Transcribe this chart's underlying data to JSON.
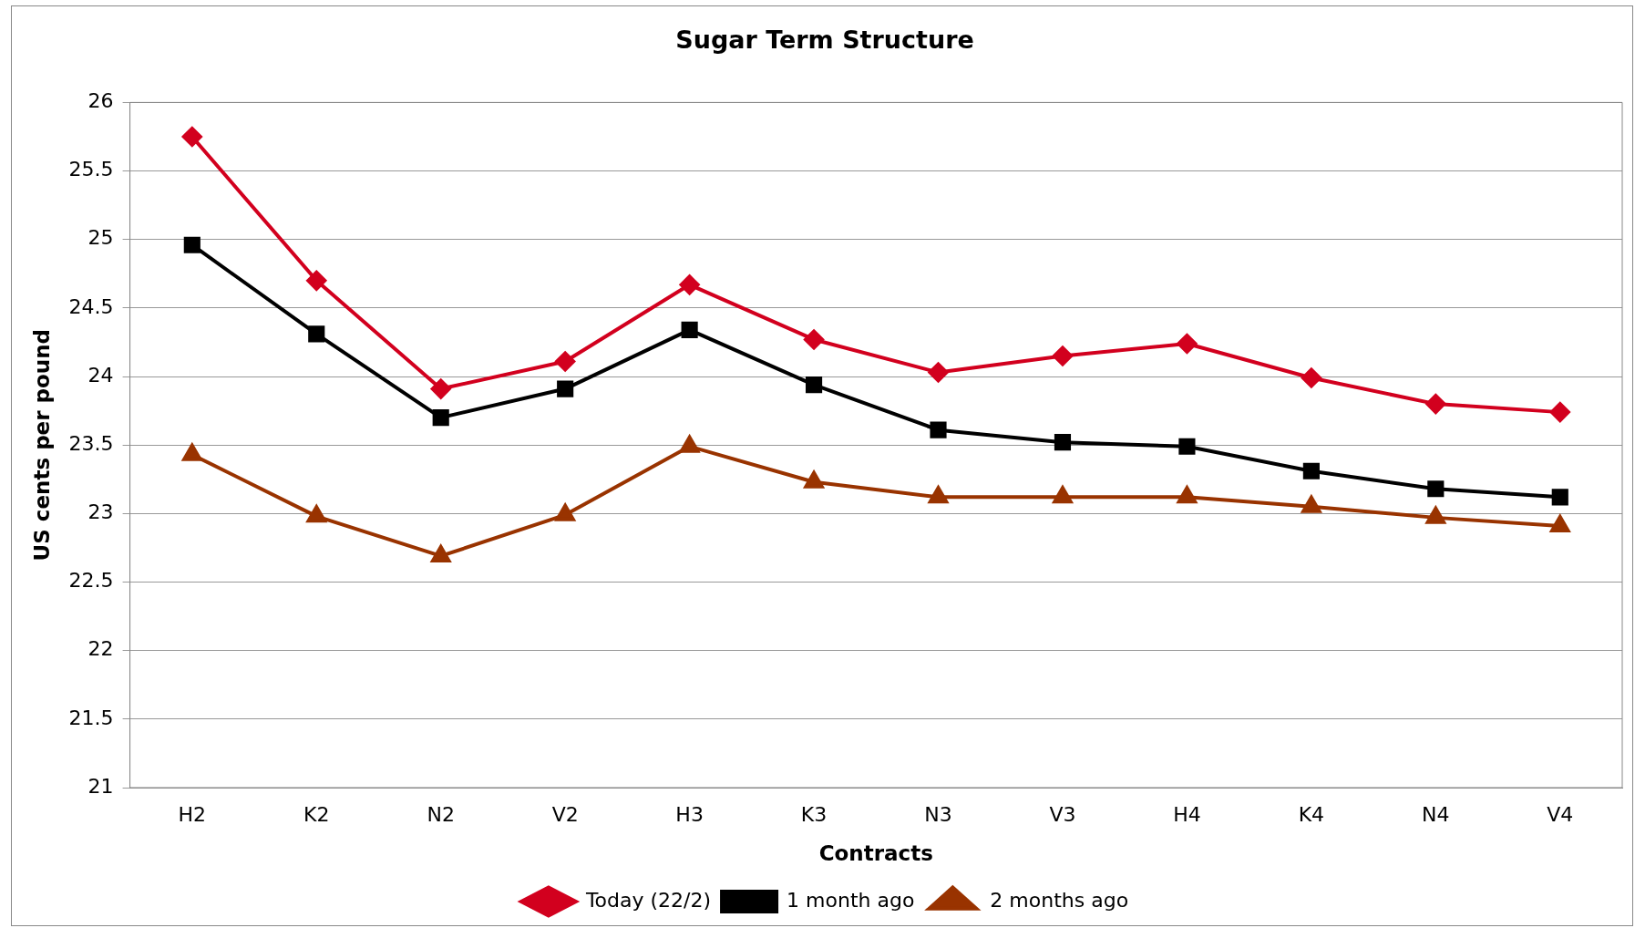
{
  "chart_data": {
    "type": "line",
    "title": "Sugar Term Structure",
    "xlabel": "Contracts",
    "ylabel": "US cents per pound",
    "categories": [
      "H2",
      "K2",
      "N2",
      "V2",
      "H3",
      "K3",
      "N3",
      "V3",
      "H4",
      "K4",
      "N4",
      "V4"
    ],
    "series": [
      {
        "name": "Today (22/2)",
        "color": "#d2001e",
        "marker": "diamond",
        "values": [
          25.75,
          24.7,
          23.91,
          24.11,
          24.67,
          24.27,
          24.03,
          24.15,
          24.24,
          23.99,
          23.8,
          23.74
        ]
      },
      {
        "name": "1 month ago",
        "color": "#000000",
        "marker": "square",
        "values": [
          24.96,
          24.31,
          23.7,
          23.91,
          24.34,
          23.94,
          23.61,
          23.52,
          23.49,
          23.31,
          23.18,
          23.12
        ]
      },
      {
        "name": "2 months ago",
        "color": "#993300",
        "marker": "triangle",
        "values": [
          23.43,
          22.98,
          22.69,
          22.99,
          23.49,
          23.23,
          23.12,
          23.12,
          23.12,
          23.05,
          22.97,
          22.91
        ]
      }
    ],
    "ylim": [
      21,
      26
    ],
    "yticks": [
      21,
      21.5,
      22,
      22.5,
      23,
      23.5,
      24,
      24.5,
      25,
      25.5,
      26
    ],
    "grid": "y",
    "legend": "bottom",
    "line_style": "solid"
  }
}
